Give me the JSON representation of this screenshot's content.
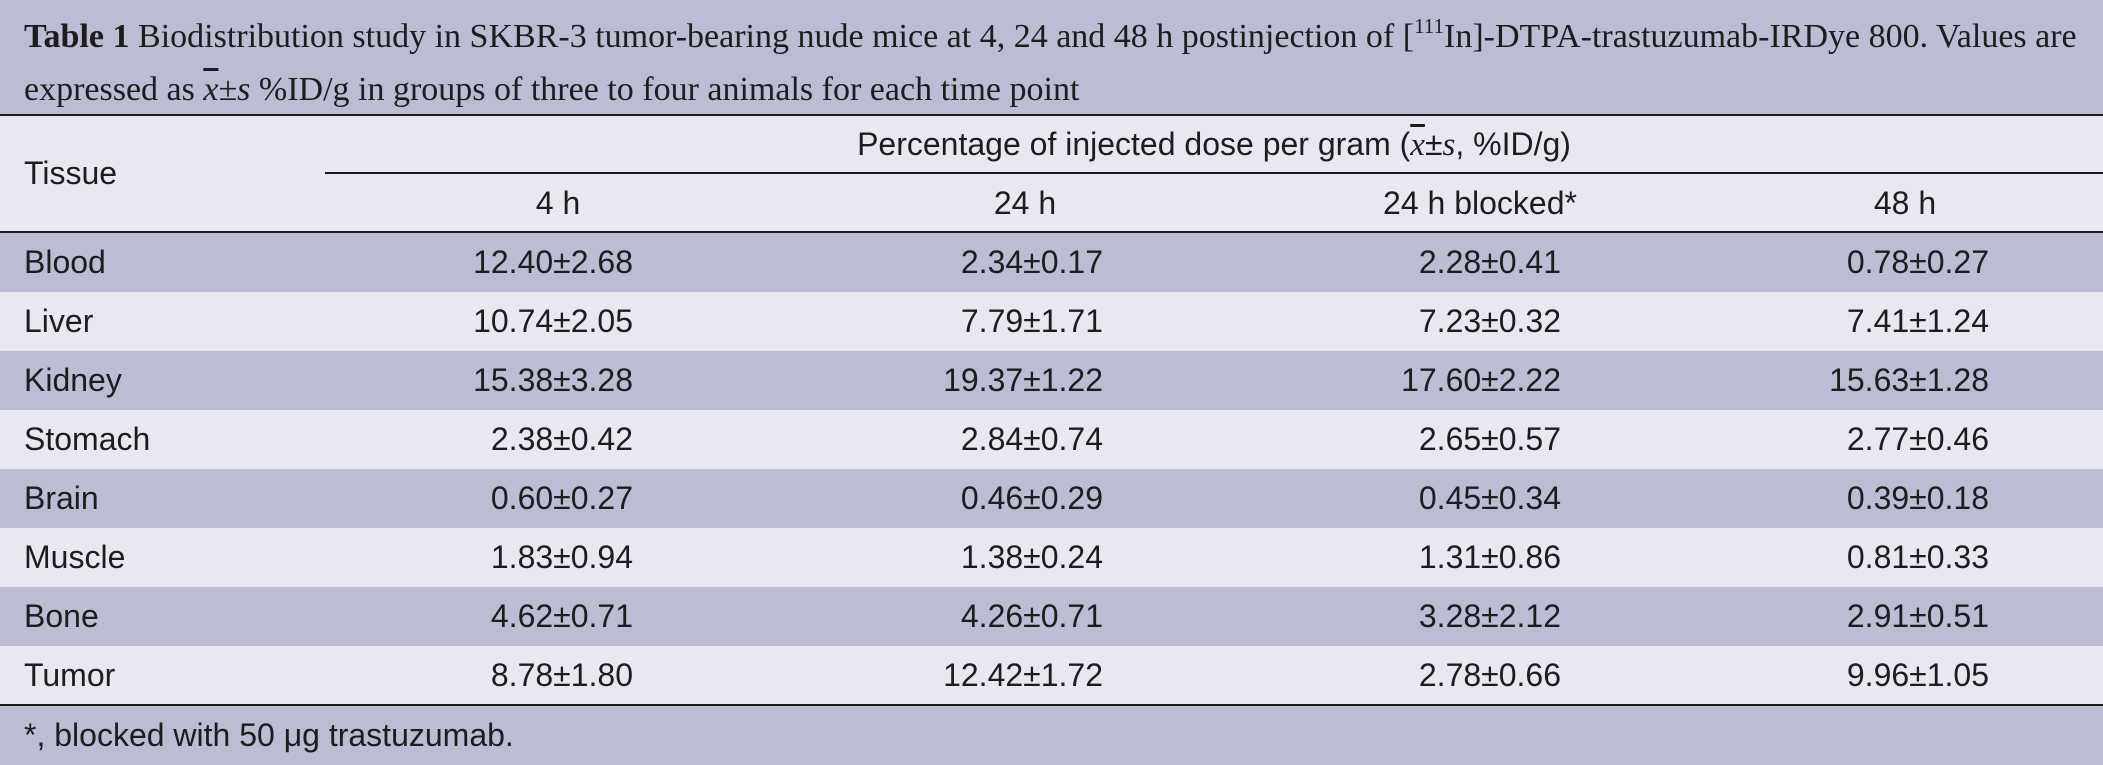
{
  "caption": {
    "label": "Table 1",
    "text_before_sup": " Biodistribution study in SKBR-3 tumor-bearing nude mice at 4, 24 and 48 h postinjection of [",
    "sup": "111",
    "text_after_sup": "In]-DTPA-trastuzumab-IRDye 800. Values are expressed as ",
    "mean_symbol": "x",
    "pm_s": "±s",
    "text_end": " %ID/g in groups of three to four animals for each time point"
  },
  "header": {
    "tissue": "Tissue",
    "span_before": "Percentage of injected dose per gram (",
    "span_mean": "x",
    "span_pm": "±",
    "span_s": "s",
    "span_after": ", %ID/g)",
    "columns": [
      "4 h",
      "24 h",
      "24 h blocked*",
      "48 h"
    ]
  },
  "rows": [
    {
      "tissue": "Blood",
      "values": [
        "12.40±2.68",
        "2.34±0.17",
        "2.28±0.41",
        "0.78±0.27"
      ]
    },
    {
      "tissue": "Liver",
      "values": [
        "10.74±2.05",
        "7.79±1.71",
        "7.23±0.32",
        "7.41±1.24"
      ]
    },
    {
      "tissue": "Kidney",
      "values": [
        "15.38±3.28",
        "19.37±1.22",
        "17.60±2.22",
        "15.63±1.28"
      ]
    },
    {
      "tissue": "Stomach",
      "values": [
        "2.38±0.42",
        "2.84±0.74",
        "2.65±0.57",
        "2.77±0.46"
      ]
    },
    {
      "tissue": "Brain",
      "values": [
        "0.60±0.27",
        "0.46±0.29",
        "0.45±0.34",
        "0.39±0.18"
      ]
    },
    {
      "tissue": "Muscle",
      "values": [
        "1.83±0.94",
        "1.38±0.24",
        "1.31±0.86",
        "0.81±0.33"
      ]
    },
    {
      "tissue": "Bone",
      "values": [
        "4.62±0.71",
        "4.26±0.71",
        "3.28±2.12",
        "2.91±0.51"
      ]
    },
    {
      "tissue": "Tumor",
      "values": [
        "8.78±1.80",
        "12.42±1.72",
        "2.78±0.66",
        "9.96±1.05"
      ]
    }
  ],
  "footnote": "*, blocked with 50 μg trastuzumab."
}
